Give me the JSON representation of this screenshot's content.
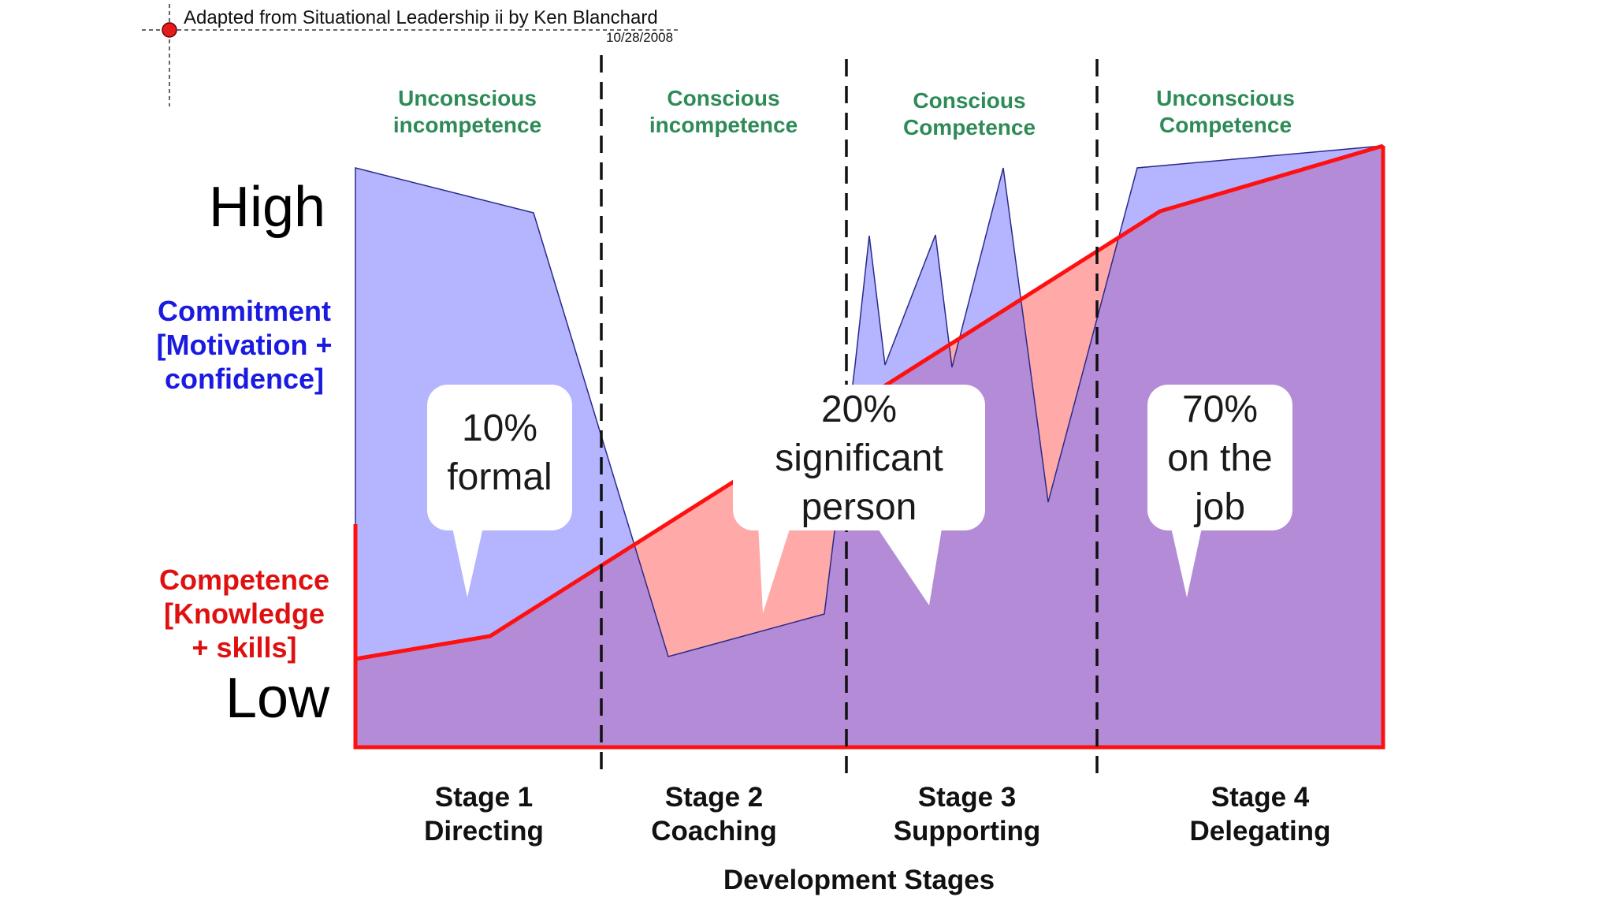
{
  "source_note": "Adapted from Situational Leadership ii by Ken Blanchard",
  "source_date": "10/28/2008",
  "phases": [
    {
      "line1": "Unconscious",
      "line2": "incompetence"
    },
    {
      "line1": "Conscious",
      "line2": "incompetence"
    },
    {
      "line1": "Conscious",
      "line2": "Competence"
    },
    {
      "line1": "Unconscious",
      "line2": "Competence"
    }
  ],
  "y_axis": {
    "high_label": "High",
    "low_label": "Low",
    "commitment": {
      "line1": "Commitment",
      "line2": "[Motivation +",
      "line3": "confidence]"
    },
    "competence": {
      "line1": "Competence",
      "line2": "[Knowledge",
      "line3": "+ skills]"
    }
  },
  "stages": [
    {
      "name": "Stage 1",
      "style": "Directing"
    },
    {
      "name": "Stage 2",
      "style": "Coaching"
    },
    {
      "name": "Stage 3",
      "style": "Supporting"
    },
    {
      "name": "Stage 4",
      "style": "Delegating"
    }
  ],
  "x_axis_title": "Development Stages",
  "callouts": [
    {
      "line1": "10%",
      "line2": "formal"
    },
    {
      "line1": "20%",
      "line2": "significant",
      "line3": "person"
    },
    {
      "line1": "70%",
      "line2": "on the",
      "line3": "job"
    }
  ],
  "colors": {
    "commitment_area": "#a8a8ff",
    "competence_line": "#ff0000",
    "competence_area": "#ff9a9a",
    "overlap": "#d488b4",
    "phase_text": "#2e8b57",
    "commitment_text": "#1a1ae0",
    "competence_text": "#e01010"
  }
}
